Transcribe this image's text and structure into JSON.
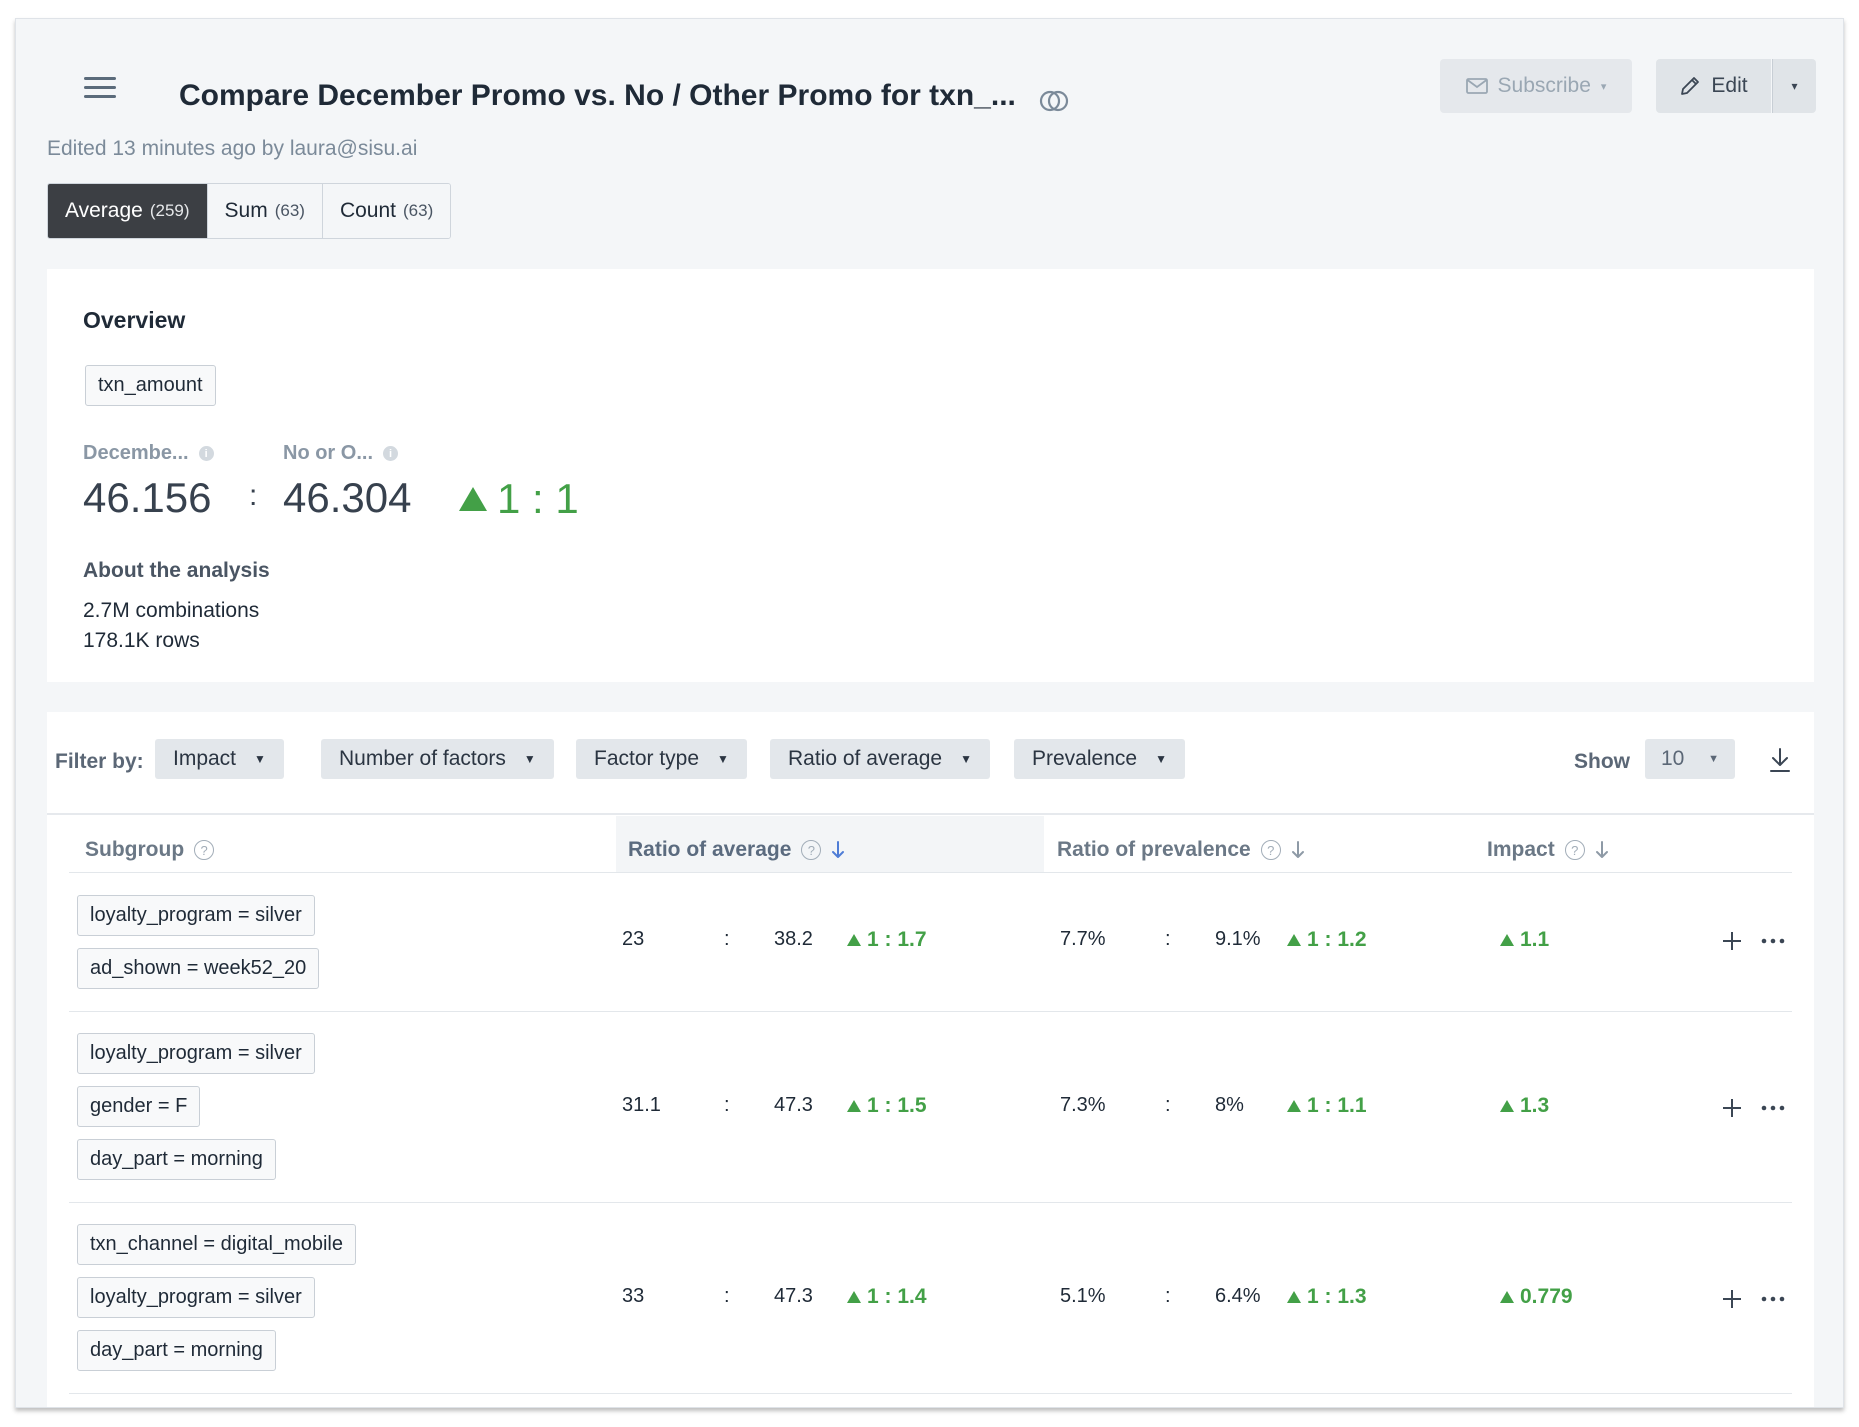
{
  "header": {
    "title": "Compare December Promo vs. No / Other Promo for txn_...",
    "edited": "Edited 13 minutes ago by laura@sisu.ai",
    "subscribe_label": "Subscribe",
    "edit_label": "Edit",
    "icons": {
      "menu": "hamburger-icon",
      "compare": "overlap-circles-icon",
      "subscribe": "envelope-icon",
      "edit": "pencil-icon"
    }
  },
  "metric_tabs": [
    {
      "label": "Average",
      "count": "(259)",
      "active": true
    },
    {
      "label": "Sum",
      "count": "(63)",
      "active": false
    },
    {
      "label": "Count",
      "count": "(63)",
      "active": false
    }
  ],
  "overview": {
    "title": "Overview",
    "metric_chip": "txn_amount",
    "group_a_label": "Decembe...",
    "group_b_label": "No or O...",
    "group_a_value": "46.156",
    "group_b_value": "46.304",
    "separator": ":",
    "ratio": "1 : 1",
    "about_title": "About the analysis",
    "combinations": "2.7M combinations",
    "rows": "178.1K rows"
  },
  "filters": {
    "label": "Filter by:",
    "buttons": [
      "Impact",
      "Number of factors",
      "Factor type",
      "Ratio of average",
      "Prevalence"
    ],
    "show_label": "Show",
    "show_value": "10"
  },
  "table": {
    "columns": {
      "subgroup": "Subgroup",
      "ratio_avg": "Ratio of average",
      "ratio_prev": "Ratio of prevalence",
      "impact": "Impact"
    },
    "rows": [
      {
        "factors": [
          "loyalty_program = silver",
          "ad_shown = week52_20"
        ],
        "avg_a": "23",
        "avg_b": "38.2",
        "avg_ratio": "1 : 1.7",
        "prev_a": "7.7%",
        "prev_b": "9.1%",
        "prev_ratio": "1 : 1.2",
        "impact": "1.1"
      },
      {
        "factors": [
          "loyalty_program = silver",
          "gender = F",
          "day_part = morning"
        ],
        "avg_a": "31.1",
        "avg_b": "47.3",
        "avg_ratio": "1 : 1.5",
        "prev_a": "7.3%",
        "prev_b": "8%",
        "prev_ratio": "1 : 1.1",
        "impact": "1.3"
      },
      {
        "factors": [
          "txn_channel = digital_mobile",
          "loyalty_program = silver",
          "day_part = morning"
        ],
        "avg_a": "33",
        "avg_b": "47.3",
        "avg_ratio": "1 : 1.4",
        "prev_a": "5.1%",
        "prev_b": "6.4%",
        "prev_ratio": "1 : 1.3",
        "impact": "0.779"
      }
    ],
    "separator": ":"
  },
  "colors": {
    "positive": "#43a047",
    "active_tab": "#3c3f44",
    "page_bg": "#f4f6f8"
  }
}
